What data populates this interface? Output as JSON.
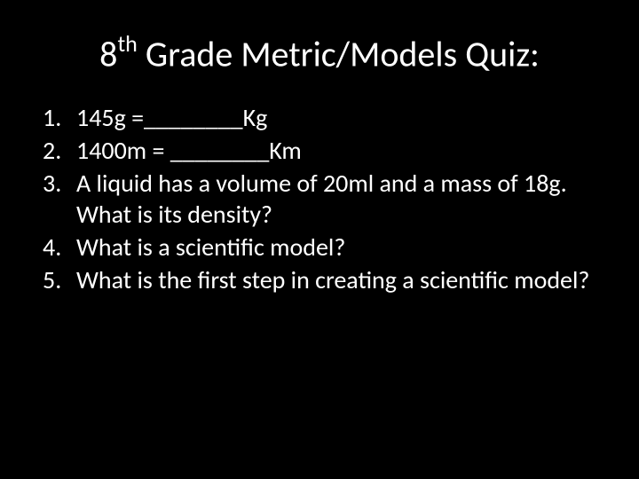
{
  "title": {
    "prefix": "8",
    "superscript": "th",
    "rest": " Grade Metric/Models Quiz:"
  },
  "questions": [
    {
      "number": "1.",
      "text": "145g =________Kg"
    },
    {
      "number": "2.",
      "text": "1400m = ________Km"
    },
    {
      "number": "3.",
      "text": "A liquid has a volume of 20ml and a mass of 18g. What is its density?"
    },
    {
      "number": "4.",
      "text": "What is a scientific model?"
    },
    {
      "number": "5.",
      "text": "What is the first step in creating a scientific model?"
    }
  ],
  "colors": {
    "background": "#000000",
    "text": "#ffffff"
  },
  "typography": {
    "title_fontsize": 40,
    "body_fontsize": 28,
    "font_family": "Calibri"
  }
}
